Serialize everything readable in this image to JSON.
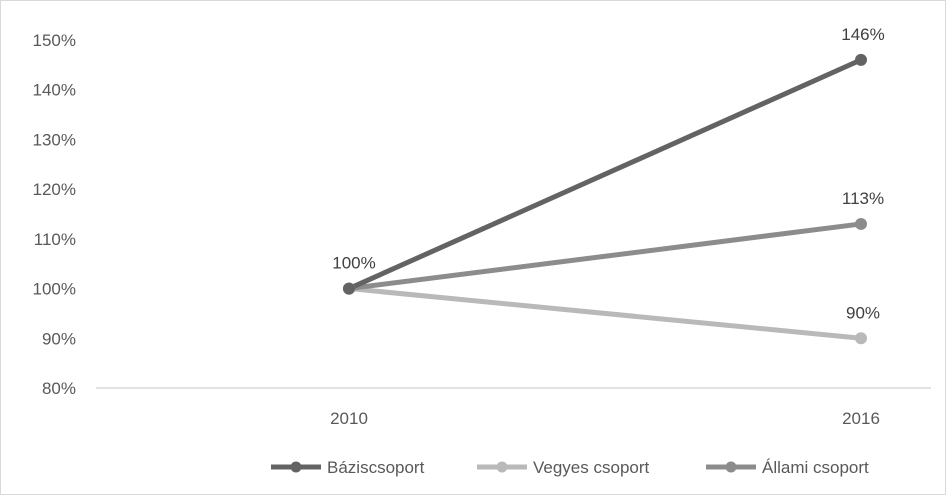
{
  "chart_data": {
    "type": "line",
    "x": [
      "2010",
      "2016"
    ],
    "ylim": [
      80,
      150
    ],
    "y_ticks": [
      80,
      90,
      100,
      110,
      120,
      130,
      140,
      150
    ],
    "y_tick_labels": [
      "80%",
      "90%",
      "100%",
      "110%",
      "120%",
      "130%",
      "140%",
      "150%"
    ],
    "y_unit": "%",
    "grid": false,
    "legend_position": "bottom",
    "series": [
      {
        "name": "Báziscsoport",
        "values": [
          100,
          146
        ],
        "labels": [
          "100%",
          "146%"
        ],
        "color": "#636363"
      },
      {
        "name": "Vegyes csoport",
        "values": [
          100,
          90
        ],
        "labels": [
          "",
          "90%"
        ],
        "color": "#b9b9b9"
      },
      {
        "name": "Állami csoport",
        "values": [
          100,
          113
        ],
        "labels": [
          "",
          "113%"
        ],
        "color": "#8c8c8c"
      }
    ]
  }
}
